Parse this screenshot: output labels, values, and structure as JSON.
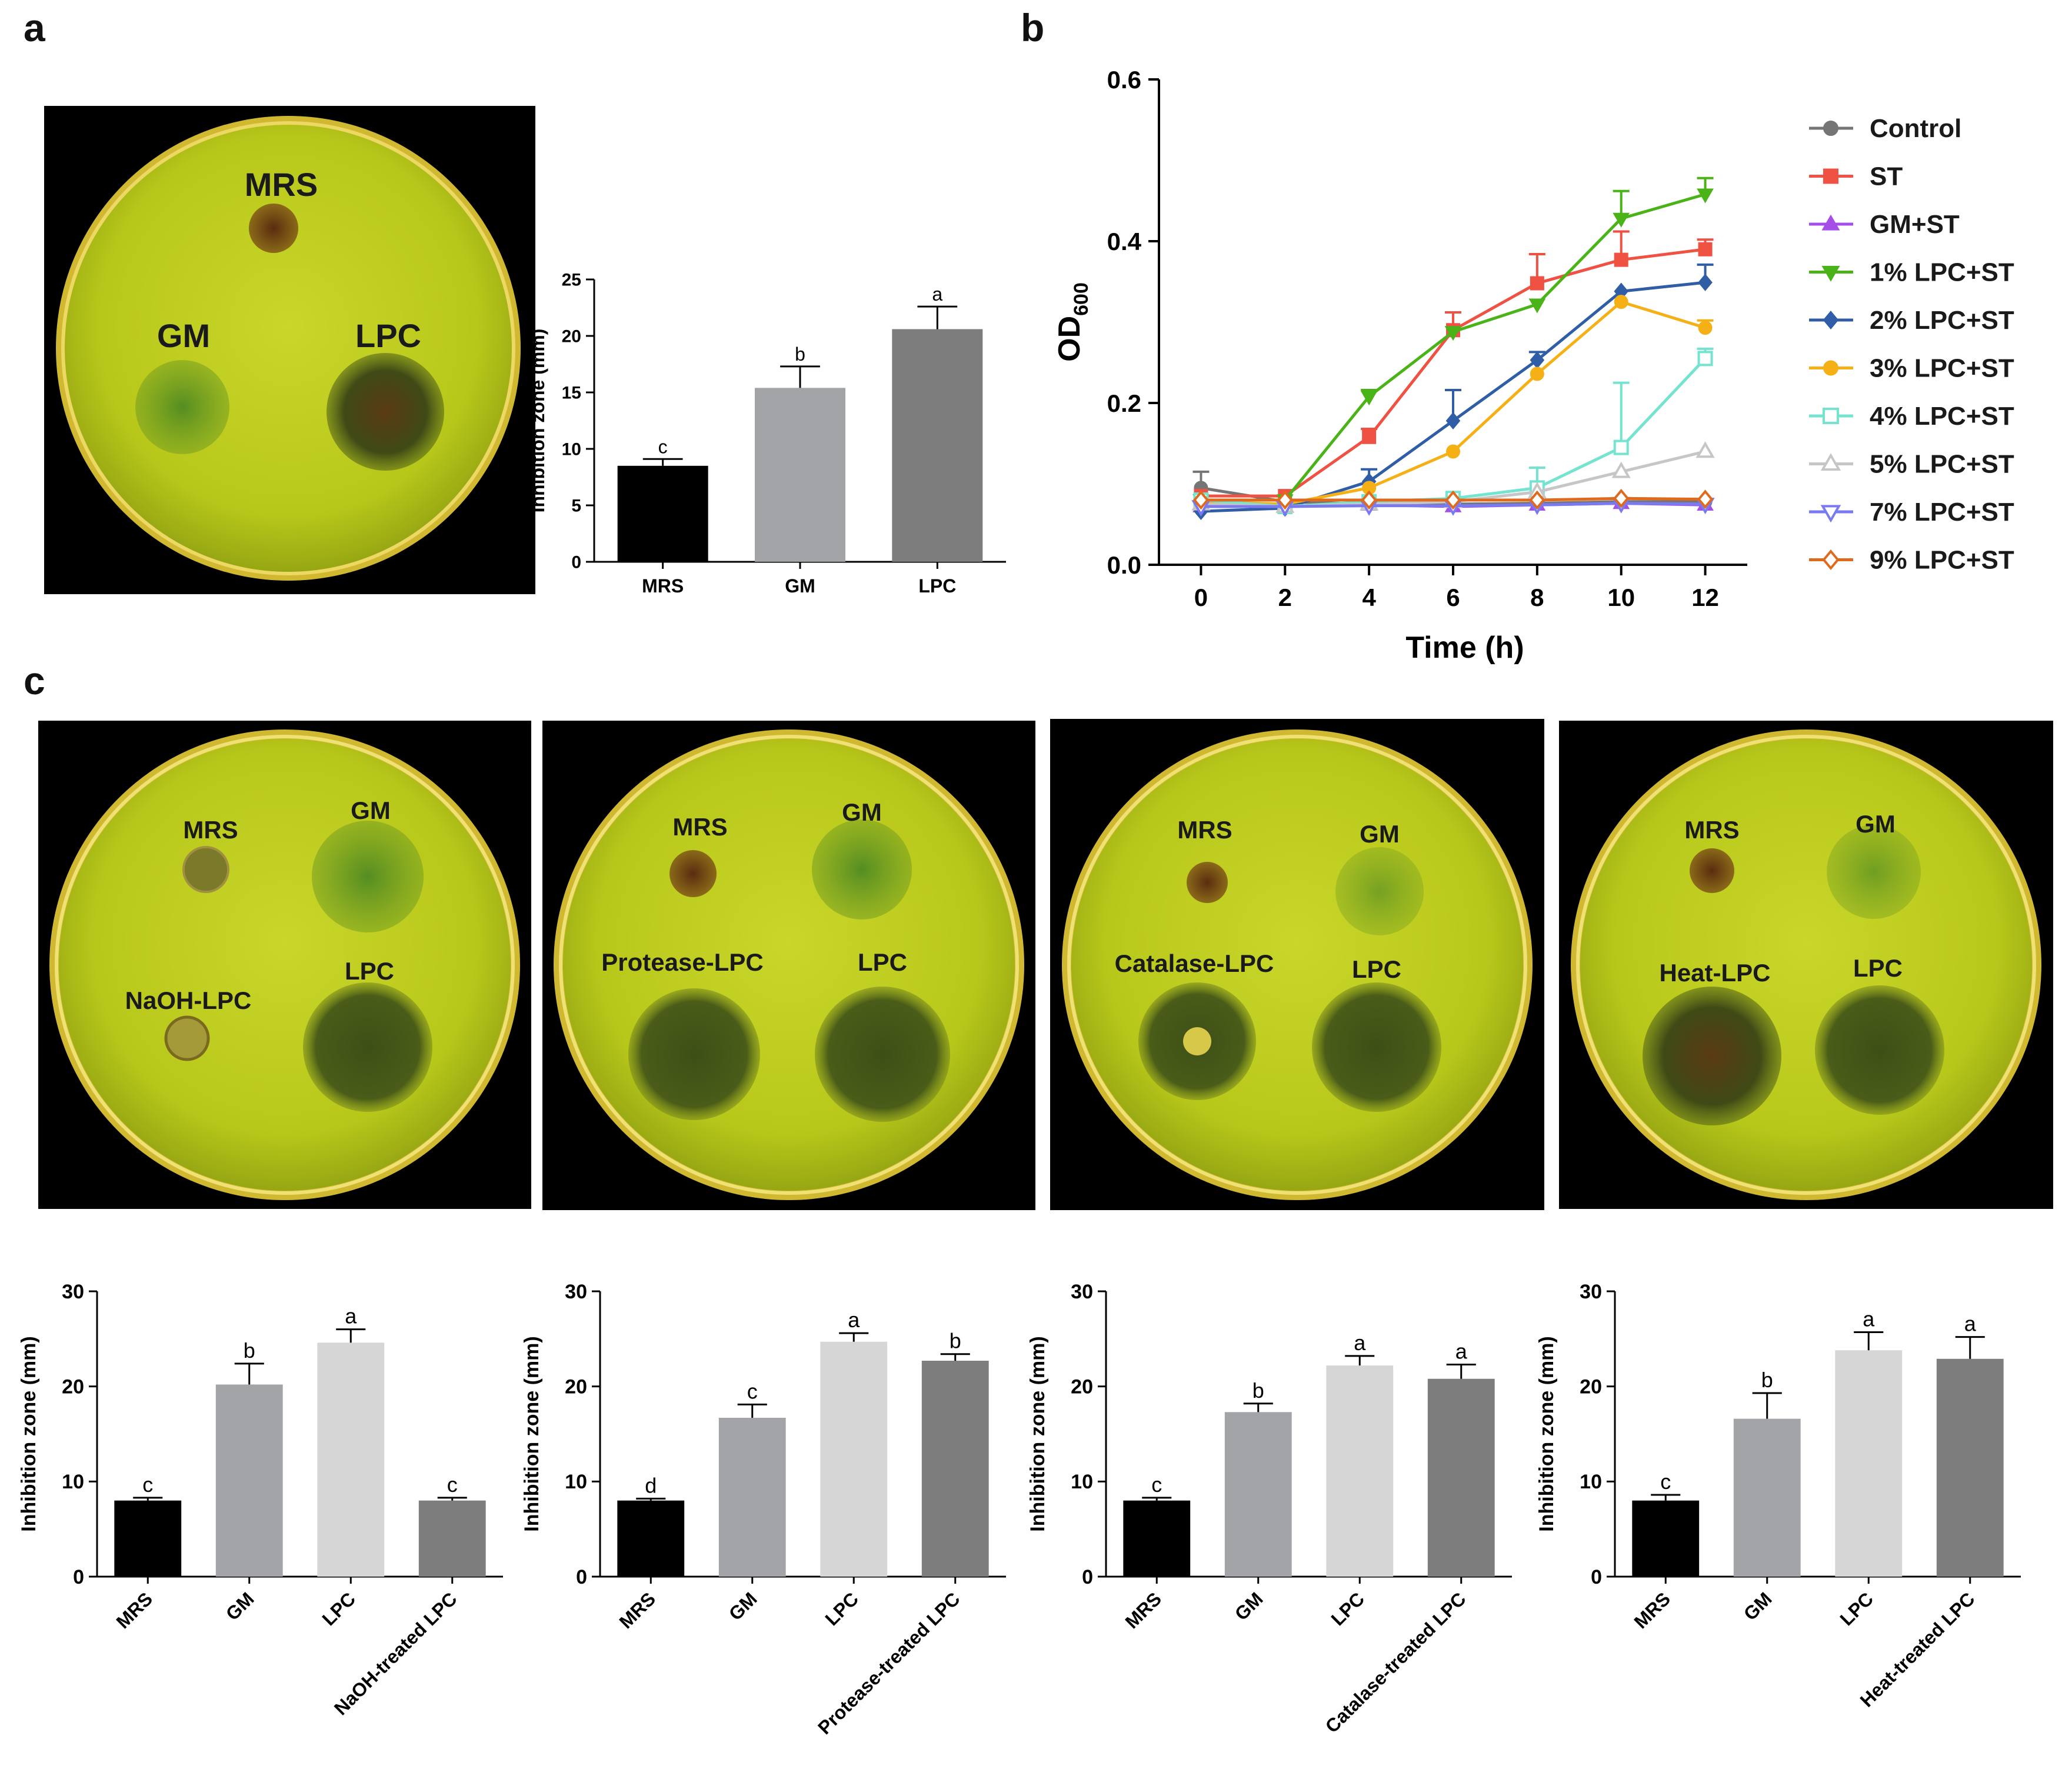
{
  "panel_letters": {
    "a": "a",
    "b": "b",
    "c": "c"
  },
  "photos": {
    "a": {
      "labels": [
        "MRS",
        "GM",
        "LPC"
      ]
    },
    "c": [
      {
        "labels": [
          "MRS",
          "GM",
          "NaOH-LPC",
          "LPC"
        ]
      },
      {
        "labels": [
          "MRS",
          "GM",
          "Protease-LPC",
          "LPC"
        ]
      },
      {
        "labels": [
          "MRS",
          "GM",
          "Catalase-LPC",
          "LPC"
        ]
      },
      {
        "labels": [
          "MRS",
          "GM",
          "Heat-LPC",
          "LPC"
        ]
      }
    ]
  },
  "colors": {
    "plate_bg": "#000000",
    "agar": "#c5d81f",
    "black_bar": "#000000",
    "gray_bar": "#a2a4a8",
    "light_bar": "#d6d6d6",
    "dark_bar": "#7d7d7d"
  },
  "chart_data": [
    {
      "id": "a",
      "type": "bar",
      "title": "",
      "xlabel": "",
      "ylabel": "Inhibition zone (mm)",
      "ylim": [
        0,
        25
      ],
      "yticks": [
        0,
        5,
        10,
        15,
        20,
        25
      ],
      "categories": [
        "MRS",
        "GM",
        "LPC"
      ],
      "values": [
        8.5,
        15.4,
        20.6
      ],
      "errors": [
        0.6,
        1.9,
        2.0
      ],
      "letters": [
        "c",
        "b",
        "a"
      ],
      "bar_colors": [
        "#000000",
        "#a2a4a8",
        "#7d7d7d"
      ],
      "rotate_labels": false
    },
    {
      "id": "b",
      "type": "line",
      "xlabel": "Time (h)",
      "ylabel": "OD",
      "ylabel_sub": "600",
      "x": [
        0,
        2,
        4,
        6,
        8,
        10,
        12
      ],
      "xlim": [
        -1,
        13
      ],
      "ylim": [
        0,
        0.6
      ],
      "yticks": [
        0.0,
        0.2,
        0.4,
        0.6
      ],
      "ytick_labels": [
        "0.0",
        "0.2",
        "0.4",
        "0.6"
      ],
      "series": [
        {
          "name": "Control",
          "color": "#757575",
          "marker": "circle",
          "values": [
            0.095,
            0.078,
            0.075,
            0.075,
            0.076,
            0.078,
            0.078
          ],
          "errors": [
            0.02,
            0,
            0,
            0,
            0,
            0,
            0
          ]
        },
        {
          "name": "ST",
          "color": "#ef5143",
          "marker": "square",
          "values": [
            0.085,
            0.085,
            0.158,
            0.29,
            0.348,
            0.377,
            0.39
          ],
          "errors": [
            0,
            0,
            0.01,
            0.022,
            0.036,
            0.035,
            0.012
          ]
        },
        {
          "name": "GM+ST",
          "color": "#a64fe8",
          "marker": "triangle-up",
          "values": [
            0.072,
            0.072,
            0.074,
            0.072,
            0.074,
            0.076,
            0.074
          ],
          "errors": [
            0,
            0,
            0,
            0,
            0,
            0,
            0
          ]
        },
        {
          "name": "1% LPC+ST",
          "color": "#49b317",
          "marker": "triangle-down",
          "values": [
            0.08,
            0.08,
            0.208,
            0.288,
            0.322,
            0.428,
            0.458
          ],
          "errors": [
            0,
            0,
            0.008,
            0,
            0,
            0.034,
            0.02
          ]
        },
        {
          "name": "2% LPC+ST",
          "color": "#2f5ea7",
          "marker": "diamond",
          "values": [
            0.066,
            0.07,
            0.103,
            0.178,
            0.253,
            0.338,
            0.349
          ],
          "errors": [
            0,
            0,
            0.015,
            0.038,
            0.01,
            0,
            0.022
          ]
        },
        {
          "name": "3% LPC+ST",
          "color": "#f5b016",
          "marker": "circle",
          "values": [
            0.078,
            0.075,
            0.095,
            0.14,
            0.236,
            0.325,
            0.293
          ],
          "errors": [
            0,
            0,
            0,
            0,
            0,
            0,
            0.009
          ]
        },
        {
          "name": "4% LPC+ST",
          "color": "#74e3cf",
          "marker": "square-open",
          "values": [
            0.08,
            0.072,
            0.078,
            0.082,
            0.095,
            0.145,
            0.255
          ],
          "errors": [
            0,
            0,
            0,
            0,
            0.025,
            0.08,
            0.012
          ]
        },
        {
          "name": "5% LPC+ST",
          "color": "#c6c6c6",
          "marker": "triangle-up-open",
          "values": [
            0.075,
            0.072,
            0.075,
            0.078,
            0.09,
            0.115,
            0.14
          ],
          "errors": [
            0,
            0,
            0,
            0,
            0,
            0,
            0
          ]
        },
        {
          "name": "7% LPC+ST",
          "color": "#7a7af0",
          "marker": "triangle-down-open",
          "values": [
            0.072,
            0.072,
            0.073,
            0.073,
            0.074,
            0.076,
            0.075
          ],
          "errors": [
            0,
            0,
            0,
            0,
            0,
            0,
            0
          ]
        },
        {
          "name": "9% LPC+ST",
          "color": "#e06a1b",
          "marker": "diamond-open",
          "values": [
            0.08,
            0.08,
            0.08,
            0.08,
            0.08,
            0.082,
            0.081
          ],
          "errors": [
            0,
            0,
            0,
            0,
            0,
            0,
            0
          ]
        }
      ]
    },
    {
      "id": "c1",
      "type": "bar",
      "ylabel": "Inhibition zone (mm)",
      "ylim": [
        0,
        30
      ],
      "yticks": [
        0,
        10,
        20,
        30
      ],
      "categories": [
        "MRS",
        "GM",
        "LPC",
        "NaOH-treated LPC"
      ],
      "values": [
        8.0,
        20.2,
        24.6,
        8.0
      ],
      "errors": [
        0.3,
        2.2,
        1.4,
        0.3
      ],
      "letters": [
        "c",
        "b",
        "a",
        "c"
      ],
      "bar_colors": [
        "#000000",
        "#a2a4a8",
        "#d6d6d6",
        "#7d7d7d"
      ],
      "rotate_labels": true
    },
    {
      "id": "c2",
      "type": "bar",
      "ylabel": "Inhibition zone (mm)",
      "ylim": [
        0,
        30
      ],
      "yticks": [
        0,
        10,
        20,
        30
      ],
      "categories": [
        "MRS",
        "GM",
        "LPC",
        "Protease-treated LPC"
      ],
      "values": [
        8.0,
        16.7,
        24.7,
        22.7
      ],
      "errors": [
        0.2,
        1.4,
        0.9,
        0.7
      ],
      "letters": [
        "d",
        "c",
        "a",
        "b"
      ],
      "bar_colors": [
        "#000000",
        "#a2a4a8",
        "#d6d6d6",
        "#7d7d7d"
      ],
      "rotate_labels": true
    },
    {
      "id": "c3",
      "type": "bar",
      "ylabel": "Inhibition zone (mm)",
      "ylim": [
        0,
        30
      ],
      "yticks": [
        0,
        10,
        20,
        30
      ],
      "categories": [
        "MRS",
        "GM",
        "LPC",
        "Catalase-treated LPC"
      ],
      "values": [
        8.0,
        17.3,
        22.2,
        20.8
      ],
      "errors": [
        0.3,
        0.9,
        1.0,
        1.5
      ],
      "letters": [
        "c",
        "b",
        "a",
        "a"
      ],
      "bar_colors": [
        "#000000",
        "#a2a4a8",
        "#d6d6d6",
        "#7d7d7d"
      ],
      "rotate_labels": true
    },
    {
      "id": "c4",
      "type": "bar",
      "ylabel": "Inhibition zone (mm)",
      "ylim": [
        0,
        30
      ],
      "yticks": [
        0,
        10,
        20,
        30
      ],
      "categories": [
        "MRS",
        "GM",
        "LPC",
        "Heat-treated LPC"
      ],
      "values": [
        8.0,
        16.6,
        23.8,
        22.9
      ],
      "errors": [
        0.6,
        2.7,
        1.9,
        2.3
      ],
      "letters": [
        "c",
        "b",
        "a",
        "a"
      ],
      "bar_colors": [
        "#000000",
        "#a2a4a8",
        "#d6d6d6",
        "#7d7d7d"
      ],
      "rotate_labels": true
    }
  ]
}
